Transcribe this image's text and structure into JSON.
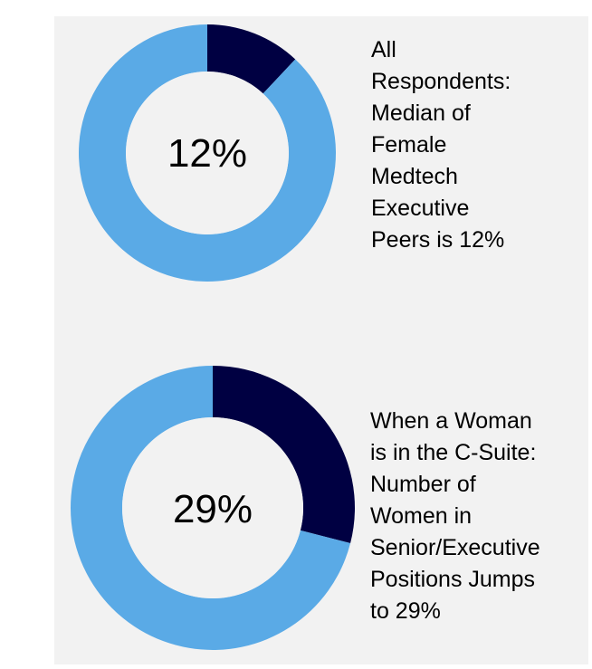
{
  "chart_data": [
    {
      "type": "pie",
      "variant": "donut",
      "center_label": "12%",
      "caption": "All\nRespondents:\nMedian of\nFemale\nMedtech\nExecutive\nPeers is 12%",
      "slices": [
        {
          "value": 12,
          "color": "#000042"
        },
        {
          "value": 88,
          "color": "#5aaae6"
        }
      ]
    },
    {
      "type": "pie",
      "variant": "donut",
      "center_label": "29%",
      "caption": "When a Woman\nis in the C-Suite:\nNumber of\nWomen in\nSenior/Executive\nPositions Jumps\nto 29%",
      "slices": [
        {
          "value": 29,
          "color": "#000042"
        },
        {
          "value": 71,
          "color": "#5aaae6"
        }
      ]
    }
  ]
}
